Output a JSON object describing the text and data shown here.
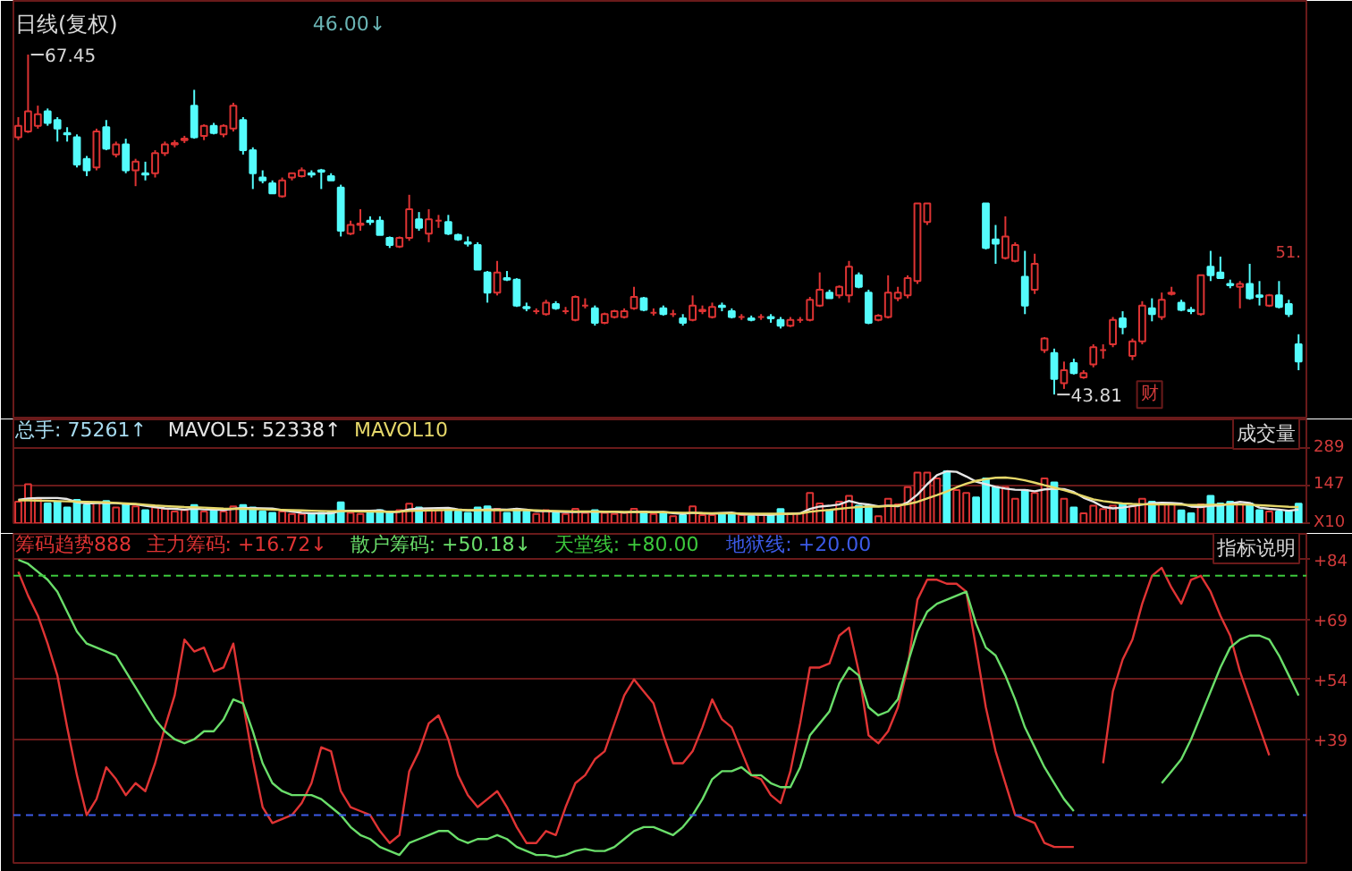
{
  "chart_data": [
    {
      "type": "candlestick",
      "title": "日线(复权)",
      "categories": [
        null,
        null,
        null,
        null,
        null,
        null,
        null,
        null,
        null,
        null,
        null,
        null,
        null,
        null,
        null,
        null,
        null,
        null,
        null,
        null,
        null,
        null,
        null,
        null,
        null,
        null,
        null,
        null,
        null,
        null,
        null,
        null,
        null,
        null,
        null,
        null,
        null,
        null,
        null,
        null,
        null,
        null,
        null,
        null,
        null,
        null,
        null,
        null,
        null,
        null,
        null,
        null,
        null,
        null,
        null,
        null,
        null,
        null,
        null,
        null,
        null,
        null,
        null,
        null,
        null,
        null,
        null,
        null,
        null,
        null,
        null,
        null,
        null,
        null,
        null,
        null,
        null,
        null,
        null,
        null,
        null,
        null,
        null,
        null,
        null,
        null,
        null,
        null,
        null,
        null,
        null,
        null,
        null,
        null,
        null,
        null,
        null,
        null,
        null,
        null,
        null,
        null,
        null,
        null,
        null,
        null,
        null,
        null,
        null,
        null,
        null,
        null,
        null,
        null,
        null,
        null,
        null,
        null,
        null,
        null,
        null,
        null,
        null,
        null,
        null,
        null,
        null,
        null,
        null,
        null,
        null,
        null
      ],
      "ohlc": [
        [
          61.7,
          63.1,
          61.5,
          62.5
        ],
        [
          62.1,
          67.45,
          62.0,
          63.5
        ],
        [
          62.5,
          63.9,
          62.3,
          63.3
        ],
        [
          63.5,
          63.7,
          62.5,
          62.7
        ],
        [
          62.9,
          63.1,
          61.4,
          62.3
        ],
        [
          62.0,
          62.4,
          61.4,
          61.9
        ],
        [
          61.7,
          61.9,
          59.6,
          59.8
        ],
        [
          60.2,
          60.4,
          59.0,
          59.4
        ],
        [
          59.6,
          62.3,
          59.4,
          62.1
        ],
        [
          62.4,
          62.9,
          60.8,
          60.9
        ],
        [
          60.5,
          61.4,
          60.3,
          61.2
        ],
        [
          61.2,
          61.6,
          59.2,
          59.4
        ],
        [
          59.4,
          60.2,
          58.3,
          60.0
        ],
        [
          59.2,
          60.0,
          58.7,
          59.1
        ],
        [
          59.2,
          60.8,
          58.9,
          60.6
        ],
        [
          60.6,
          61.4,
          60.4,
          61.2
        ],
        [
          61.2,
          61.5,
          61.0,
          61.3
        ],
        [
          61.5,
          61.8,
          61.3,
          61.6
        ],
        [
          63.9,
          65.0,
          61.6,
          61.7
        ],
        [
          61.8,
          62.6,
          61.5,
          62.5
        ],
        [
          62.5,
          62.7,
          61.9,
          62.0
        ],
        [
          61.9,
          62.6,
          61.7,
          62.5
        ],
        [
          62.3,
          64.1,
          62.1,
          63.9
        ],
        [
          62.9,
          63.1,
          60.5,
          60.8
        ],
        [
          60.8,
          61.0,
          58.1,
          59.2
        ],
        [
          58.9,
          59.4,
          58.5,
          58.7
        ],
        [
          58.5,
          58.7,
          57.8,
          57.8
        ],
        [
          57.6,
          58.9,
          57.5,
          58.7
        ],
        [
          58.9,
          59.2,
          58.7,
          59.2
        ],
        [
          59.0,
          59.6,
          58.9,
          59.4
        ],
        [
          59.2,
          59.4,
          58.9,
          59.1
        ],
        [
          59.4,
          59.5,
          58.1,
          59.3
        ],
        [
          59.0,
          59.2,
          58.7,
          58.7
        ],
        [
          58.2,
          58.4,
          54.8,
          55.2
        ],
        [
          55.0,
          55.9,
          54.9,
          55.6
        ],
        [
          55.6,
          56.7,
          55.2,
          55.7
        ],
        [
          55.9,
          56.2,
          55.6,
          55.8
        ],
        [
          55.9,
          56.2,
          54.9,
          54.9
        ],
        [
          54.7,
          54.8,
          54.0,
          54.2
        ],
        [
          54.1,
          54.8,
          54.0,
          54.7
        ],
        [
          54.7,
          57.7,
          54.5,
          56.7
        ],
        [
          56.0,
          56.5,
          55.2,
          55.4
        ],
        [
          55.0,
          56.7,
          54.4,
          56.0
        ],
        [
          55.9,
          56.3,
          55.4,
          55.9
        ],
        [
          55.8,
          56.3,
          54.9,
          55.0
        ],
        [
          54.9,
          55.0,
          54.5,
          54.6
        ],
        [
          54.4,
          54.8,
          54.1,
          54.3
        ],
        [
          54.2,
          54.4,
          52.5,
          52.5
        ],
        [
          52.3,
          52.4,
          50.2,
          50.9
        ],
        [
          50.9,
          53.1,
          50.7,
          52.3
        ],
        [
          51.9,
          52.4,
          51.7,
          51.8
        ],
        [
          51.8,
          51.9,
          49.9,
          50.0
        ],
        [
          49.9,
          50.2,
          49.6,
          49.8
        ],
        [
          49.6,
          49.8,
          49.4,
          49.6
        ],
        [
          49.4,
          50.4,
          49.3,
          50.2
        ],
        [
          50.1,
          50.3,
          49.7,
          49.8
        ],
        [
          49.6,
          49.9,
          49.4,
          49.6
        ],
        [
          49.0,
          50.7,
          48.9,
          50.6
        ],
        [
          50.0,
          50.5,
          49.8,
          50.0
        ],
        [
          49.8,
          50.0,
          48.6,
          48.8
        ],
        [
          48.8,
          49.5,
          48.7,
          49.4
        ],
        [
          49.2,
          49.7,
          49.1,
          49.6
        ],
        [
          49.2,
          49.8,
          49.1,
          49.6
        ],
        [
          49.8,
          51.3,
          49.7,
          50.6
        ],
        [
          50.5,
          50.6,
          49.6,
          49.7
        ],
        [
          49.5,
          49.8,
          49.3,
          49.5
        ],
        [
          49.8,
          50.0,
          49.3,
          49.4
        ],
        [
          49.4,
          49.7,
          49.2,
          49.4
        ],
        [
          49.1,
          49.4,
          48.6,
          48.8
        ],
        [
          49.0,
          50.7,
          48.9,
          50.0
        ],
        [
          49.6,
          50.0,
          49.4,
          49.7
        ],
        [
          49.2,
          50.2,
          49.1,
          49.9
        ],
        [
          50.0,
          50.2,
          49.6,
          49.9
        ],
        [
          49.6,
          49.8,
          49.1,
          49.2
        ],
        [
          49.2,
          49.4,
          49.0,
          49.2
        ],
        [
          49.1,
          49.3,
          48.9,
          49.0
        ],
        [
          49.2,
          49.4,
          49.0,
          49.2
        ],
        [
          49.2,
          49.4,
          48.8,
          49.1
        ],
        [
          49.0,
          49.2,
          48.4,
          48.6
        ],
        [
          48.6,
          49.2,
          48.5,
          49.0
        ],
        [
          49.0,
          49.2,
          48.8,
          49.0
        ],
        [
          49.0,
          50.6,
          48.9,
          50.4
        ],
        [
          50.0,
          52.3,
          49.9,
          51.1
        ],
        [
          50.9,
          51.1,
          50.5,
          50.5
        ],
        [
          50.7,
          51.4,
          50.5,
          51.3
        ],
        [
          50.7,
          53.1,
          50.2,
          52.7
        ],
        [
          52.1,
          52.3,
          51.2,
          51.3
        ],
        [
          50.9,
          51.1,
          48.7,
          48.8
        ],
        [
          49.0,
          49.4,
          48.9,
          49.3
        ],
        [
          49.2,
          52.1,
          49.1,
          50.9
        ],
        [
          50.5,
          51.3,
          50.3,
          50.9
        ],
        [
          50.7,
          52.1,
          50.5,
          51.9
        ],
        [
          51.7,
          57.1,
          51.5,
          57.1
        ],
        [
          55.8,
          57.1,
          55.6,
          57.1
        ],
        null,
        null,
        null,
        null,
        null,
        [
          57.1,
          57.1,
          53.9,
          54.0
        ],
        [
          54.6,
          55.6,
          52.9,
          54.3
        ],
        [
          53.3,
          56.2,
          53.2,
          54.8
        ],
        [
          53.1,
          54.4,
          53.0,
          54.2
        ],
        [
          52.0,
          53.8,
          49.4,
          50.0
        ],
        [
          51.1,
          53.6,
          50.8,
          52.9
        ],
        [
          46.9,
          47.8,
          46.7,
          47.7
        ],
        [
          46.7,
          47.0,
          43.81,
          44.9
        ],
        [
          44.6,
          46.1,
          44.2,
          45.5
        ],
        [
          46.0,
          46.3,
          45.2,
          45.3
        ],
        [
          45.0,
          45.5,
          44.9,
          45.3
        ],
        [
          45.9,
          47.3,
          45.7,
          47.1
        ],
        [
          46.9,
          47.3,
          46.3,
          46.9
        ],
        [
          47.3,
          49.2,
          47.1,
          49.0
        ],
        [
          49.1,
          49.6,
          48.0,
          48.5
        ],
        [
          46.5,
          47.7,
          46.2,
          47.5
        ],
        [
          47.5,
          50.3,
          47.3,
          50.0
        ],
        [
          49.8,
          50.5,
          48.9,
          49.4
        ],
        [
          49.2,
          50.9,
          49.0,
          50.4
        ],
        [
          50.8,
          51.3,
          50.7,
          50.9
        ],
        [
          50.2,
          50.4,
          49.6,
          49.7
        ],
        [
          49.7,
          49.9,
          49.4,
          49.6
        ],
        [
          49.4,
          52.1,
          49.3,
          52.1
        ],
        [
          52.7,
          53.8,
          51.7,
          52.1
        ],
        [
          52.3,
          53.4,
          51.9,
          51.9
        ],
        [
          51.5,
          51.8,
          51.2,
          51.4
        ],
        [
          51.3,
          51.7,
          49.8,
          51.5
        ],
        [
          51.5,
          52.9,
          50.4,
          50.5
        ],
        [
          50.7,
          51.7,
          50.0,
          50.6
        ],
        [
          50.0,
          50.8,
          49.9,
          50.7
        ],
        [
          50.7,
          51.7,
          49.8,
          49.9
        ],
        [
          50.1,
          50.4,
          49.2,
          49.4
        ],
        [
          47.3,
          48.0,
          45.5,
          46.1
        ]
      ],
      "colors": [
        "#dd3333",
        "#dd3333",
        "#dd3333",
        "#54fcfc",
        "#54fcfc",
        "#54fcfc",
        "#54fcfc",
        "#54fcfc",
        "#dd3333",
        "#54fcfc",
        "#dd3333",
        "#54fcfc",
        "#dd3333",
        "#54fcfc",
        "#dd3333",
        "#dd3333",
        "#dd3333",
        "#dd3333",
        "#54fcfc",
        "#dd3333",
        "#54fcfc",
        "#dd3333",
        "#dd3333",
        "#54fcfc",
        "#54fcfc",
        "#54fcfc",
        "#54fcfc",
        "#dd3333",
        "#dd3333",
        "#dd3333",
        "#54fcfc",
        "#54fcfc",
        "#54fcfc",
        "#54fcfc",
        "#dd3333",
        "#dd3333",
        "#54fcfc",
        "#54fcfc",
        "#54fcfc",
        "#dd3333",
        "#dd3333",
        "#54fcfc",
        "#dd3333",
        "#dd3333",
        "#54fcfc",
        "#54fcfc",
        "#54fcfc",
        "#54fcfc",
        "#54fcfc",
        "#dd3333",
        "#54fcfc",
        "#54fcfc",
        "#54fcfc",
        "#dd3333",
        "#dd3333",
        "#54fcfc",
        "#dd3333",
        "#dd3333",
        "#dd3333",
        "#54fcfc",
        "#dd3333",
        "#dd3333",
        "#dd3333",
        "#dd3333",
        "#54fcfc",
        "#dd3333",
        "#54fcfc",
        "#dd3333",
        "#54fcfc",
        "#dd3333",
        "#dd3333",
        "#dd3333",
        "#54fcfc",
        "#54fcfc",
        "#dd3333",
        "#54fcfc",
        "#dd3333",
        "#54fcfc",
        "#54fcfc",
        "#dd3333",
        "#dd3333",
        "#dd3333",
        "#dd3333",
        "#54fcfc",
        "#dd3333",
        "#dd3333",
        "#54fcfc",
        "#54fcfc",
        "#dd3333",
        "#dd3333",
        "#dd3333",
        "#dd3333",
        "#dd3333",
        "#dd3333",
        null,
        null,
        null,
        null,
        null,
        "#54fcfc",
        "#54fcfc",
        "#dd3333",
        "#dd3333",
        "#54fcfc",
        "#dd3333",
        "#dd3333",
        "#54fcfc",
        "#dd3333",
        "#54fcfc",
        "#dd3333",
        "#dd3333",
        "#dd3333",
        "#dd3333",
        "#54fcfc",
        "#dd3333",
        "#dd3333",
        "#54fcfc",
        "#dd3333",
        "#dd3333",
        "#54fcfc",
        "#54fcfc",
        "#dd3333",
        "#54fcfc",
        "#54fcfc",
        "#54fcfc",
        "#dd3333",
        "#54fcfc",
        "#54fcfc",
        "#dd3333",
        "#54fcfc",
        "#54fcfc",
        "#54fcfc"
      ],
      "annotations": [
        "46.00↓",
        "67.45",
        "43.81",
        "财",
        "51."
      ]
    },
    {
      "type": "bar",
      "categories": [
        null,
        null,
        null,
        null,
        null,
        null,
        null,
        null,
        null,
        null,
        null,
        null,
        null,
        null,
        null,
        null,
        null,
        null,
        null,
        null,
        null,
        null,
        null,
        null,
        null,
        null,
        null,
        null,
        null,
        null,
        null,
        null,
        null,
        null,
        null,
        null,
        null,
        null,
        null,
        null,
        null,
        null,
        null,
        null,
        null,
        null,
        null,
        null,
        null,
        null,
        null,
        null,
        null,
        null,
        null,
        null,
        null,
        null,
        null,
        null,
        null,
        null,
        null,
        null,
        null,
        null,
        null,
        null,
        null,
        null,
        null,
        null,
        null,
        null,
        null,
        null,
        null,
        null,
        null,
        null,
        null,
        null,
        null,
        null,
        null,
        null,
        null,
        null,
        null,
        null,
        null,
        null,
        null,
        null,
        null,
        null,
        null,
        null,
        null,
        null,
        null,
        null,
        null,
        null,
        null,
        null,
        null,
        null,
        null,
        null,
        null,
        null,
        null,
        null,
        null,
        null,
        null,
        null,
        null,
        null,
        null,
        null,
        null,
        null,
        null,
        null,
        null,
        null,
        null,
        null,
        null,
        null
      ],
      "series": [
        {
          "name": "总手: 75261↑",
          "type": "bar",
          "color": "#a8dcf0",
          "colors": [
            "#dd3333",
            "#dd3333",
            "#dd3333",
            "#54fcfc",
            "#54fcfc",
            "#54fcfc",
            "#54fcfc",
            "#54fcfc",
            "#dd3333",
            "#54fcfc",
            "#dd3333",
            "#54fcfc",
            "#dd3333",
            "#54fcfc",
            "#dd3333",
            "#dd3333",
            "#dd3333",
            "#dd3333",
            "#54fcfc",
            "#dd3333",
            "#54fcfc",
            "#dd3333",
            "#dd3333",
            "#54fcfc",
            "#54fcfc",
            "#54fcfc",
            "#54fcfc",
            "#dd3333",
            "#dd3333",
            "#dd3333",
            "#54fcfc",
            "#54fcfc",
            "#54fcfc",
            "#54fcfc",
            "#dd3333",
            "#dd3333",
            "#54fcfc",
            "#54fcfc",
            "#54fcfc",
            "#dd3333",
            "#dd3333",
            "#54fcfc",
            "#dd3333",
            "#dd3333",
            "#54fcfc",
            "#54fcfc",
            "#54fcfc",
            "#54fcfc",
            "#54fcfc",
            "#dd3333",
            "#54fcfc",
            "#54fcfc",
            "#54fcfc",
            "#dd3333",
            "#dd3333",
            "#54fcfc",
            "#dd3333",
            "#dd3333",
            "#dd3333",
            "#54fcfc",
            "#dd3333",
            "#dd3333",
            "#dd3333",
            "#dd3333",
            "#54fcfc",
            "#dd3333",
            "#54fcfc",
            "#dd3333",
            "#54fcfc",
            "#dd3333",
            "#dd3333",
            "#dd3333",
            "#54fcfc",
            "#54fcfc",
            "#dd3333",
            "#54fcfc",
            "#dd3333",
            "#54fcfc",
            "#54fcfc",
            "#dd3333",
            "#dd3333",
            "#dd3333",
            "#dd3333",
            "#54fcfc",
            "#dd3333",
            "#dd3333",
            "#54fcfc",
            "#54fcfc",
            "#dd3333",
            "#dd3333",
            "#dd3333",
            "#dd3333",
            "#dd3333",
            "#dd3333",
            "#dd3333",
            "#54fcfc",
            "#dd3333",
            "#dd3333",
            "#54fcfc",
            "#54fcfc",
            "#54fcfc",
            "#dd3333",
            "#dd3333",
            "#54fcfc",
            "#dd3333",
            "#dd3333",
            "#54fcfc",
            "#dd3333",
            "#54fcfc",
            "#dd3333",
            "#dd3333",
            "#dd3333",
            "#dd3333",
            "#54fcfc",
            "#dd3333",
            "#dd3333",
            "#54fcfc",
            "#dd3333",
            "#dd3333",
            "#54fcfc",
            "#54fcfc",
            "#dd3333",
            "#54fcfc",
            "#54fcfc",
            "#54fcfc",
            "#dd3333",
            "#54fcfc",
            "#54fcfc",
            "#dd3333",
            "#54fcfc",
            "#54fcfc",
            "#54fcfc"
          ],
          "values": [
            83,
            150,
            94,
            76,
            83,
            60,
            90,
            70,
            80,
            85,
            60,
            75,
            65,
            50,
            60,
            55,
            45,
            50,
            70,
            45,
            50,
            45,
            65,
            70,
            60,
            45,
            40,
            45,
            35,
            35,
            35,
            40,
            45,
            80,
            40,
            35,
            40,
            50,
            45,
            50,
            75,
            60,
            55,
            50,
            55,
            45,
            40,
            60,
            65,
            55,
            40,
            55,
            45,
            35,
            50,
            40,
            35,
            55,
            40,
            50,
            40,
            35,
            40,
            55,
            45,
            35,
            38,
            27,
            31,
            65,
            31,
            31,
            38,
            38,
            31,
            27,
            31,
            31,
            54,
            38,
            38,
            116,
            76,
            49,
            83,
            105,
            67,
            67,
            27,
            94,
            72,
            139,
            195,
            195,
            172,
            200,
            128,
            116,
            99,
            172,
            139,
            139,
            94,
            128,
            116,
            172,
            157,
            94,
            60,
            38,
            67,
            54,
            67,
            76,
            65,
            94,
            83,
            76,
            72,
            49,
            38,
            72,
            105,
            76,
            83,
            72,
            76,
            50,
            45,
            45,
            46,
            75
          ]
        },
        {
          "name": "MAVOL5: 52338↑",
          "type": "line",
          "color": "#e6e6e6",
          "values": [
            90,
            95,
            97,
            97,
            97,
            93,
            81,
            76,
            77,
            77,
            77,
            74,
            73,
            67,
            62,
            57,
            55,
            52,
            56,
            53,
            52,
            51,
            55,
            59,
            58,
            57,
            56,
            50,
            45,
            40,
            38,
            38,
            38,
            47,
            48,
            48,
            48,
            49,
            42,
            44,
            53,
            56,
            57,
            58,
            59,
            53,
            49,
            50,
            53,
            53,
            52,
            55,
            52,
            46,
            46,
            45,
            43,
            43,
            44,
            44,
            44,
            44,
            41,
            44,
            43,
            42,
            43,
            39,
            36,
            40,
            38,
            37,
            39,
            41,
            34,
            33,
            33,
            32,
            35,
            36,
            38,
            55,
            64,
            67,
            72,
            86,
            76,
            72,
            65,
            67,
            65,
            80,
            110,
            150,
            185,
            200,
            198,
            180,
            160,
            150,
            140,
            133,
            129,
            128,
            123,
            130,
            133,
            131,
            120,
            98,
            83,
            63,
            57,
            60,
            66,
            71,
            77,
            79,
            78,
            75,
            64,
            62,
            67,
            68,
            75,
            82,
            78,
            60,
            55,
            52,
            48,
            52
          ]
        },
        {
          "name": "MAVOL10",
          "type": "line",
          "color": "#e6d86a",
          "values": [
            88,
            88,
            87,
            86,
            85,
            84,
            83,
            82,
            81,
            80,
            78,
            76,
            74,
            71,
            68,
            66,
            64,
            62,
            61,
            60,
            58,
            56,
            55,
            55,
            54,
            53,
            52,
            51,
            50,
            49,
            48,
            47,
            46,
            47,
            46,
            45,
            45,
            44,
            44,
            45,
            47,
            48,
            49,
            50,
            51,
            51,
            50,
            50,
            50,
            50,
            50,
            50,
            50,
            49,
            48,
            47,
            46,
            45,
            45,
            45,
            44,
            44,
            43,
            43,
            43,
            42,
            42,
            41,
            40,
            40,
            39,
            38,
            38,
            38,
            37,
            36,
            36,
            36,
            36,
            36,
            37,
            44,
            48,
            51,
            55,
            59,
            62,
            64,
            64,
            66,
            68,
            73,
            82,
            95,
            108,
            122,
            138,
            152,
            163,
            170,
            175,
            176,
            172,
            165,
            156,
            146,
            137,
            127,
            116,
            104,
            92,
            85,
            80,
            76,
            74,
            73,
            72,
            72,
            72,
            71,
            70,
            70,
            71,
            72,
            72,
            72,
            71,
            69,
            67,
            65,
            63,
            62
          ]
        }
      ],
      "ylim": [
        0,
        400
      ],
      "yticks": [
        {
          "value": 0,
          "label": "X10"
        },
        147,
        289
      ],
      "grid": "y",
      "legend": "top left",
      "annotations": [
        "成交量"
      ]
    },
    {
      "type": "line",
      "title": "筹码趋势888",
      "categories": [
        null,
        null,
        null,
        null,
        null,
        null,
        null,
        null,
        null,
        null,
        null,
        null,
        null,
        null,
        null,
        null,
        null,
        null,
        null,
        null,
        null,
        null,
        null,
        null,
        null,
        null,
        null,
        null,
        null,
        null,
        null,
        null,
        null,
        null,
        null,
        null,
        null,
        null,
        null,
        null,
        null,
        null,
        null,
        null,
        null,
        null,
        null,
        null,
        null,
        null,
        null,
        null,
        null,
        null,
        null,
        null,
        null,
        null,
        null,
        null,
        null,
        null,
        null,
        null,
        null,
        null,
        null,
        null,
        null,
        null,
        null,
        null,
        null,
        null,
        null,
        null,
        null,
        null,
        null,
        null,
        null,
        null,
        null,
        null,
        null,
        null,
        null,
        null,
        null,
        null,
        null,
        null,
        null,
        null,
        null,
        null,
        null,
        null,
        null,
        null,
        null,
        null,
        null,
        null,
        null,
        null,
        null,
        null,
        null,
        null,
        null,
        null,
        null,
        null,
        null,
        null,
        null,
        null,
        null,
        null,
        null,
        null,
        null,
        null,
        null,
        null,
        null,
        null,
        null,
        null,
        null,
        null
      ],
      "series": [
        {
          "name": "主力筹码: +16.72↓",
          "color": "#e03434",
          "values": [
            81,
            75,
            70,
            63,
            55,
            42,
            30,
            20,
            24,
            32,
            29,
            25,
            28,
            26,
            33,
            42,
            50,
            64,
            61,
            62,
            56,
            57,
            63,
            48,
            34,
            22,
            18,
            19,
            20,
            23,
            28,
            37,
            36,
            26,
            22,
            21,
            20,
            16,
            13,
            15,
            31,
            36,
            43,
            45,
            39,
            30,
            25,
            22,
            24,
            26,
            22,
            17,
            13,
            13,
            16,
            15,
            22,
            28,
            30,
            34,
            36,
            43,
            50,
            54,
            51,
            48,
            40,
            33,
            33,
            36,
            42,
            49,
            44,
            42,
            36,
            30,
            29,
            25,
            23,
            31,
            43,
            57,
            57,
            58,
            65,
            67,
            56,
            40,
            38,
            41,
            47,
            57,
            74,
            79,
            79,
            78,
            78,
            76,
            62,
            47,
            36,
            28,
            20,
            19,
            18,
            13,
            12,
            12,
            12,
            null,
            null,
            33,
            51,
            59,
            64,
            73,
            80,
            82,
            77,
            73,
            79,
            80,
            76,
            70,
            65,
            56,
            49,
            42,
            35,
            null,
            null,
            null
          ]
        },
        {
          "name": "散户筹码: +50.18↓",
          "color": "#6ade6a",
          "values": [
            84,
            83,
            81,
            79,
            76,
            71,
            66,
            63,
            62,
            61,
            60,
            56,
            52,
            48,
            44,
            41,
            39,
            38,
            39,
            41,
            41,
            44,
            49,
            48,
            41,
            33,
            28,
            26,
            25,
            25,
            25,
            24,
            22,
            20,
            17,
            15,
            14,
            12,
            11,
            10,
            13,
            14,
            15,
            16,
            16,
            14,
            13,
            14,
            14,
            15,
            14,
            12,
            11,
            10,
            10,
            9.5,
            10,
            11,
            11.5,
            11,
            11,
            12,
            14,
            16,
            17,
            17,
            16,
            15,
            17,
            20,
            24,
            29,
            31,
            31,
            32,
            30,
            30,
            28,
            27,
            27,
            32,
            40,
            43,
            46,
            53,
            57,
            55,
            47,
            45,
            46,
            49,
            58,
            66,
            71,
            73,
            74,
            75,
            76,
            68,
            62,
            60,
            55,
            49,
            42,
            37,
            32,
            28,
            24,
            21,
            null,
            null,
            null,
            null,
            null,
            null,
            null,
            null,
            28,
            31,
            34,
            39,
            45,
            51,
            57,
            62,
            64,
            65,
            65,
            64,
            60,
            55,
            50
          ]
        }
      ],
      "ylim": [
        8,
        90.5
      ],
      "yticks": [
        {
          "value": 84,
          "label": "+84"
        },
        {
          "value": 69,
          "label": "+69"
        },
        {
          "value": 54,
          "label": "+54"
        },
        {
          "value": 39,
          "label": "+39"
        }
      ],
      "grid": "y",
      "legend": "top left",
      "ref_lines": [
        {
          "axis": "y",
          "value": 80,
          "label": "天堂线: +80.00",
          "color": "#3cc83c",
          "line_style": "dashed"
        },
        {
          "axis": "y",
          "value": 20,
          "label": "地狱线: +20.00",
          "color": "#3c5ae6",
          "line_style": "dashed"
        }
      ],
      "annotations": [
        "指标说明"
      ]
    }
  ]
}
